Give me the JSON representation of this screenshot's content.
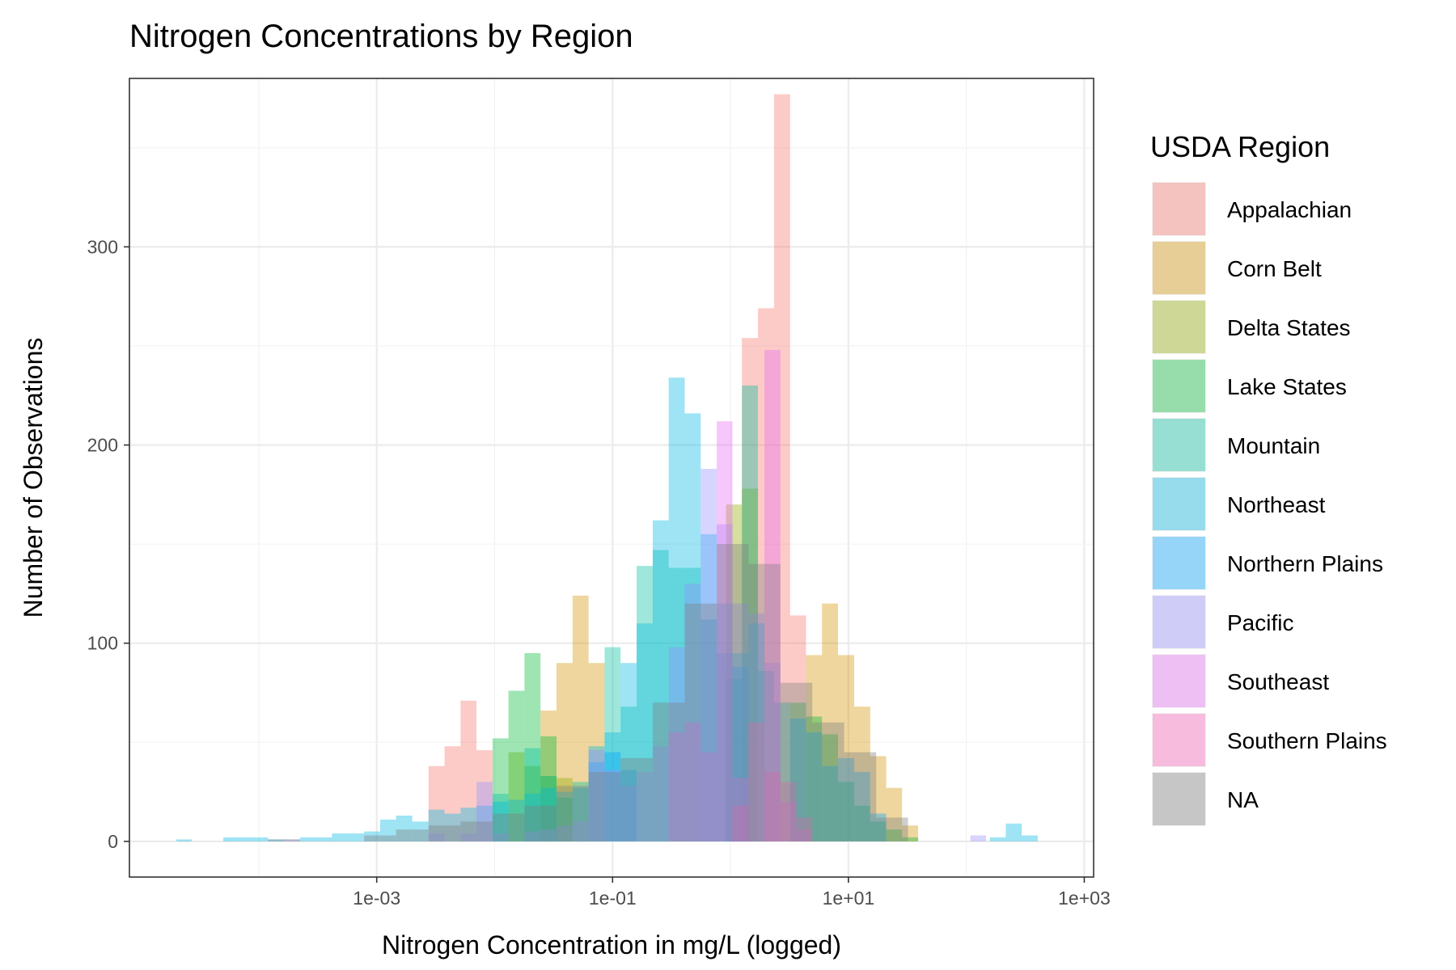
{
  "chart_data": {
    "type": "bar",
    "subtype": "overlapping-histogram",
    "title": "Nitrogen Concentrations by Region",
    "xlabel": "Nitrogen Concentration in mg/L (logged)",
    "ylabel": "Number of Observations",
    "x_scale": "log10",
    "xlim": [
      8e-06,
      1200
    ],
    "ylim": [
      -18,
      385
    ],
    "x_ticks": [
      {
        "value": 0.001,
        "label": "1e-03"
      },
      {
        "value": 0.1,
        "label": "1e-01"
      },
      {
        "value": 10,
        "label": "1e+01"
      },
      {
        "value": 1000,
        "label": "1e+03"
      }
    ],
    "y_ticks": [
      {
        "value": 0,
        "label": "0"
      },
      {
        "value": 100,
        "label": "100"
      },
      {
        "value": 200,
        "label": "200"
      },
      {
        "value": 300,
        "label": "300"
      }
    ],
    "grid": true,
    "bar_opacity": 0.38,
    "legend": {
      "title": "USDA Region",
      "position": "right"
    },
    "bin_width_log10": 0.134,
    "series": [
      {
        "name": "Appalachian",
        "color": "#F8766D",
        "bins": [
          {
            "x0": 0.00275,
            "x1": 0.00376,
            "count": 38
          },
          {
            "x0": 0.00376,
            "x1": 0.00514,
            "count": 48
          },
          {
            "x0": 0.00514,
            "x1": 0.00702,
            "count": 71
          },
          {
            "x0": 0.00702,
            "x1": 0.0096,
            "count": 46
          },
          {
            "x0": 1.25,
            "x1": 1.71,
            "count": 254
          },
          {
            "x0": 1.71,
            "x1": 2.34,
            "count": 269
          },
          {
            "x0": 2.34,
            "x1": 3.2,
            "count": 377
          },
          {
            "x0": 3.2,
            "x1": 4.37,
            "count": 114
          }
        ]
      },
      {
        "name": "Corn Belt",
        "color": "#D39200",
        "bins": [
          {
            "x0": 0.0245,
            "x1": 0.0335,
            "count": 66
          },
          {
            "x0": 0.0335,
            "x1": 0.0458,
            "count": 90
          },
          {
            "x0": 0.0458,
            "x1": 0.0626,
            "count": 124
          },
          {
            "x0": 0.0626,
            "x1": 0.0856,
            "count": 90
          },
          {
            "x0": 4.37,
            "x1": 5.97,
            "count": 94
          },
          {
            "x0": 5.97,
            "x1": 8.16,
            "count": 120
          },
          {
            "x0": 8.16,
            "x1": 11.2,
            "count": 94
          },
          {
            "x0": 11.2,
            "x1": 15.3,
            "count": 68
          },
          {
            "x0": 15.3,
            "x1": 20.9,
            "count": 43
          },
          {
            "x0": 20.9,
            "x1": 28.5,
            "count": 27
          },
          {
            "x0": 28.5,
            "x1": 39.0,
            "count": 8
          }
        ]
      },
      {
        "name": "Delta States",
        "color": "#93AA00",
        "bins": [
          {
            "x0": 0.0131,
            "x1": 0.0179,
            "count": 45
          },
          {
            "x0": 0.0179,
            "x1": 0.0245,
            "count": 38
          },
          {
            "x0": 0.0245,
            "x1": 0.0335,
            "count": 33
          },
          {
            "x0": 0.0335,
            "x1": 0.0458,
            "count": 32
          },
          {
            "x0": 0.916,
            "x1": 1.25,
            "count": 170
          },
          {
            "x0": 1.25,
            "x1": 1.71,
            "count": 178
          }
        ]
      },
      {
        "name": "Lake States",
        "color": "#00BA38",
        "bins": [
          {
            "x0": 0.0096,
            "x1": 0.0131,
            "count": 52
          },
          {
            "x0": 0.0131,
            "x1": 0.0179,
            "count": 76
          },
          {
            "x0": 0.0179,
            "x1": 0.0245,
            "count": 95
          },
          {
            "x0": 0.0245,
            "x1": 0.0335,
            "count": 53
          },
          {
            "x0": 0.0335,
            "x1": 0.0458,
            "count": 22
          },
          {
            "x0": 3.2,
            "x1": 4.37,
            "count": 70
          },
          {
            "x0": 4.37,
            "x1": 5.97,
            "count": 63
          },
          {
            "x0": 5.97,
            "x1": 8.16,
            "count": 54
          },
          {
            "x0": 8.16,
            "x1": 11.2,
            "count": 30
          },
          {
            "x0": 11.2,
            "x1": 15.3,
            "count": 18
          },
          {
            "x0": 15.3,
            "x1": 20.9,
            "count": 10
          },
          {
            "x0": 20.9,
            "x1": 28.5,
            "count": 6
          },
          {
            "x0": 28.5,
            "x1": 39.0,
            "count": 2
          }
        ]
      },
      {
        "name": "Mountain",
        "color": "#00C19F",
        "bins": [
          {
            "x0": 0.0096,
            "x1": 0.0131,
            "count": 24
          },
          {
            "x0": 0.0179,
            "x1": 0.0245,
            "count": 47
          },
          {
            "x0": 0.0245,
            "x1": 0.0335,
            "count": 33
          },
          {
            "x0": 0.0458,
            "x1": 0.0626,
            "count": 30
          },
          {
            "x0": 0.0856,
            "x1": 0.117,
            "count": 98
          },
          {
            "x0": 0.117,
            "x1": 0.16,
            "count": 68
          },
          {
            "x0": 0.16,
            "x1": 0.219,
            "count": 139
          },
          {
            "x0": 0.219,
            "x1": 0.299,
            "count": 147
          },
          {
            "x0": 0.299,
            "x1": 0.409,
            "count": 138
          },
          {
            "x0": 0.409,
            "x1": 0.559,
            "count": 138
          },
          {
            "x0": 0.916,
            "x1": 1.25,
            "count": 82
          },
          {
            "x0": 1.25,
            "x1": 1.71,
            "count": 230
          },
          {
            "x0": 1.71,
            "x1": 2.34,
            "count": 86
          },
          {
            "x0": 2.34,
            "x1": 3.2,
            "count": 70
          }
        ]
      },
      {
        "name": "Northeast",
        "color": "#00B9E3",
        "bins": [
          {
            "x0": 2e-05,
            "x1": 2.7e-05,
            "count": 1
          },
          {
            "x0": 5e-05,
            "x1": 0.00012,
            "count": 2
          },
          {
            "x0": 0.00012,
            "x1": 0.000164,
            "count": 1
          },
          {
            "x0": 0.000224,
            "x1": 0.000306,
            "count": 2
          },
          {
            "x0": 0.000306,
            "x1": 0.000418,
            "count": 2
          },
          {
            "x0": 0.000418,
            "x1": 0.000572,
            "count": 4
          },
          {
            "x0": 0.000572,
            "x1": 0.000782,
            "count": 4
          },
          {
            "x0": 0.000782,
            "x1": 0.00107,
            "count": 5
          },
          {
            "x0": 0.00107,
            "x1": 0.00146,
            "count": 11
          },
          {
            "x0": 0.00146,
            "x1": 0.002,
            "count": 13
          },
          {
            "x0": 0.002,
            "x1": 0.00275,
            "count": 10
          },
          {
            "x0": 0.00275,
            "x1": 0.00376,
            "count": 16
          },
          {
            "x0": 0.00376,
            "x1": 0.00514,
            "count": 14
          },
          {
            "x0": 0.00514,
            "x1": 0.00702,
            "count": 17
          },
          {
            "x0": 0.00702,
            "x1": 0.0096,
            "count": 18
          },
          {
            "x0": 0.0096,
            "x1": 0.0131,
            "count": 20
          },
          {
            "x0": 0.0131,
            "x1": 0.0179,
            "count": 21
          },
          {
            "x0": 0.0179,
            "x1": 0.0245,
            "count": 24
          },
          {
            "x0": 0.0245,
            "x1": 0.0335,
            "count": 27
          },
          {
            "x0": 0.0335,
            "x1": 0.0458,
            "count": 25
          },
          {
            "x0": 0.0458,
            "x1": 0.0626,
            "count": 27
          },
          {
            "x0": 0.0626,
            "x1": 0.0856,
            "count": 48
          },
          {
            "x0": 0.0856,
            "x1": 0.117,
            "count": 55
          },
          {
            "x0": 0.117,
            "x1": 0.16,
            "count": 90
          },
          {
            "x0": 0.16,
            "x1": 0.219,
            "count": 110
          },
          {
            "x0": 0.219,
            "x1": 0.299,
            "count": 162
          },
          {
            "x0": 0.299,
            "x1": 0.409,
            "count": 234
          },
          {
            "x0": 0.409,
            "x1": 0.559,
            "count": 216
          },
          {
            "x0": 0.559,
            "x1": 0.764,
            "count": 155
          },
          {
            "x0": 0.764,
            "x1": 1.04,
            "count": 120
          },
          {
            "x0": 1.04,
            "x1": 1.42,
            "count": 95
          },
          {
            "x0": 1.42,
            "x1": 1.94,
            "count": 110
          },
          {
            "x0": 158,
            "x1": 216,
            "count": 2
          },
          {
            "x0": 216,
            "x1": 295,
            "count": 9
          },
          {
            "x0": 295,
            "x1": 403,
            "count": 3
          }
        ]
      },
      {
        "name": "Northern Plains",
        "color": "#00A5FF",
        "bins": [
          {
            "x0": 0.0626,
            "x1": 0.0856,
            "count": 40
          },
          {
            "x0": 0.0856,
            "x1": 0.117,
            "count": 45
          },
          {
            "x0": 0.117,
            "x1": 0.16,
            "count": 36
          },
          {
            "x0": 0.559,
            "x1": 0.764,
            "count": 112
          },
          {
            "x0": 0.764,
            "x1": 1.04,
            "count": 95
          },
          {
            "x0": 1.04,
            "x1": 1.42,
            "count": 88
          },
          {
            "x0": 3.2,
            "x1": 4.37,
            "count": 62
          },
          {
            "x0": 4.37,
            "x1": 5.97,
            "count": 55
          },
          {
            "x0": 5.97,
            "x1": 8.16,
            "count": 38
          },
          {
            "x0": 8.16,
            "x1": 11.2,
            "count": 42
          },
          {
            "x0": 11.2,
            "x1": 15.3,
            "count": 35
          },
          {
            "x0": 15.3,
            "x1": 20.9,
            "count": 14
          }
        ]
      },
      {
        "name": "Pacific",
        "color": "#9590FF",
        "bins": [
          {
            "x0": 0.000164,
            "x1": 0.000224,
            "count": 1
          },
          {
            "x0": 0.00275,
            "x1": 0.00376,
            "count": 4
          },
          {
            "x0": 0.00514,
            "x1": 0.00702,
            "count": 4
          },
          {
            "x0": 0.00702,
            "x1": 0.0096,
            "count": 30
          },
          {
            "x0": 0.0096,
            "x1": 0.0131,
            "count": 4
          },
          {
            "x0": 0.0179,
            "x1": 0.0245,
            "count": 5
          },
          {
            "x0": 0.0245,
            "x1": 0.0335,
            "count": 6
          },
          {
            "x0": 0.0335,
            "x1": 0.0458,
            "count": 8
          },
          {
            "x0": 0.0458,
            "x1": 0.0626,
            "count": 10
          },
          {
            "x0": 0.0626,
            "x1": 0.0856,
            "count": 46
          },
          {
            "x0": 0.0856,
            "x1": 0.117,
            "count": 36
          },
          {
            "x0": 0.117,
            "x1": 0.16,
            "count": 28
          },
          {
            "x0": 0.16,
            "x1": 0.219,
            "count": 35
          },
          {
            "x0": 0.219,
            "x1": 0.299,
            "count": 48
          },
          {
            "x0": 0.299,
            "x1": 0.409,
            "count": 98
          },
          {
            "x0": 0.409,
            "x1": 0.559,
            "count": 130
          },
          {
            "x0": 0.559,
            "x1": 0.764,
            "count": 188
          },
          {
            "x0": 0.764,
            "x1": 1.04,
            "count": 160
          },
          {
            "x0": 1.04,
            "x1": 1.42,
            "count": 120
          },
          {
            "x0": 1.42,
            "x1": 1.94,
            "count": 115
          },
          {
            "x0": 1.94,
            "x1": 2.65,
            "count": 90
          },
          {
            "x0": 108,
            "x1": 147,
            "count": 3
          }
        ]
      },
      {
        "name": "Southeast",
        "color": "#E76BF3",
        "bins": [
          {
            "x0": 0.299,
            "x1": 0.409,
            "count": 55
          },
          {
            "x0": 0.409,
            "x1": 0.559,
            "count": 60
          },
          {
            "x0": 0.559,
            "x1": 0.764,
            "count": 45
          },
          {
            "x0": 0.764,
            "x1": 1.04,
            "count": 212
          },
          {
            "x0": 1.04,
            "x1": 1.42,
            "count": 32
          },
          {
            "x0": 1.94,
            "x1": 2.65,
            "count": 248
          },
          {
            "x0": 2.65,
            "x1": 3.62,
            "count": 20
          },
          {
            "x0": 3.62,
            "x1": 4.94,
            "count": 6
          }
        ]
      },
      {
        "name": "Southern Plains",
        "color": "#FF62BC",
        "bins": [
          {
            "x0": 1.04,
            "x1": 1.42,
            "count": 18
          },
          {
            "x0": 1.42,
            "x1": 1.94,
            "count": 60
          },
          {
            "x0": 1.94,
            "x1": 2.65,
            "count": 35
          },
          {
            "x0": 2.65,
            "x1": 3.62,
            "count": 30
          },
          {
            "x0": 3.62,
            "x1": 4.94,
            "count": 12
          }
        ]
      },
      {
        "name": "NA",
        "color": "#7F7F7F",
        "bins": [
          {
            "x0": 0.00012,
            "x1": 0.000224,
            "count": 1
          },
          {
            "x0": 0.000782,
            "x1": 0.00146,
            "count": 3
          },
          {
            "x0": 0.00146,
            "x1": 0.00275,
            "count": 6
          },
          {
            "x0": 0.00275,
            "x1": 0.00514,
            "count": 8
          },
          {
            "x0": 0.00514,
            "x1": 0.0096,
            "count": 10
          },
          {
            "x0": 0.0096,
            "x1": 0.0179,
            "count": 14
          },
          {
            "x0": 0.0179,
            "x1": 0.0335,
            "count": 18
          },
          {
            "x0": 0.0335,
            "x1": 0.0626,
            "count": 28
          },
          {
            "x0": 0.0626,
            "x1": 0.117,
            "count": 35
          },
          {
            "x0": 0.117,
            "x1": 0.219,
            "count": 42
          },
          {
            "x0": 0.219,
            "x1": 0.409,
            "count": 70
          },
          {
            "x0": 0.409,
            "x1": 0.764,
            "count": 120
          },
          {
            "x0": 0.764,
            "x1": 1.42,
            "count": 150
          },
          {
            "x0": 1.42,
            "x1": 2.65,
            "count": 140
          },
          {
            "x0": 2.65,
            "x1": 4.94,
            "count": 80
          },
          {
            "x0": 4.94,
            "x1": 9.2,
            "count": 60
          },
          {
            "x0": 9.2,
            "x1": 17.2,
            "count": 45
          },
          {
            "x0": 17.2,
            "x1": 32.0,
            "count": 12
          }
        ]
      }
    ]
  }
}
